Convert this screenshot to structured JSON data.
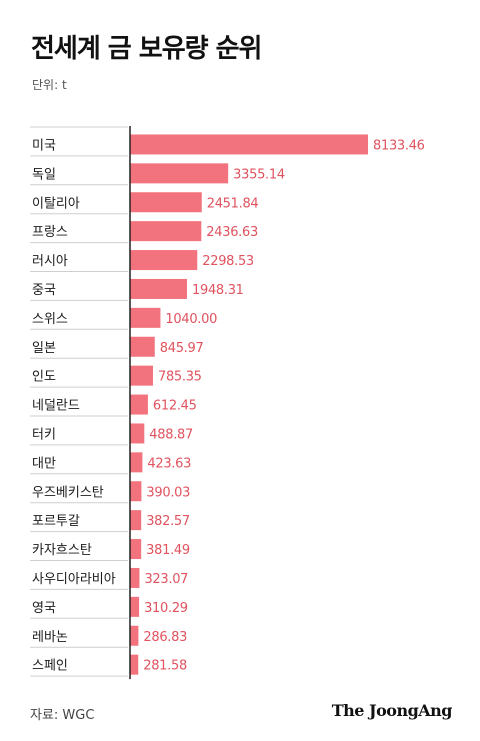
{
  "header": {
    "title": "전세계 금 보유량 순위",
    "unit": "단위: t"
  },
  "footer": {
    "source": "자료: WGC",
    "brand": "The JoongAng"
  },
  "colors": {
    "bar": "#f2737d",
    "value_label": "#e0535f",
    "category_label": "#1a1a1a",
    "axis": "#222222",
    "separator": "#cfcfcf"
  },
  "chart_data": {
    "type": "bar",
    "orientation": "horizontal",
    "title": "전세계 금 보유량 순위",
    "unit": "t",
    "xlim": [
      0,
      8133.46
    ],
    "grid": false,
    "legend": "none",
    "categories": [
      "미국",
      "독일",
      "이탈리아",
      "프랑스",
      "러시아",
      "중국",
      "스위스",
      "일본",
      "인도",
      "네덜란드",
      "터키",
      "대만",
      "우즈베키스탄",
      "포르투갈",
      "카자흐스탄",
      "사우디아라비아",
      "영국",
      "레바논",
      "스페인"
    ],
    "values": [
      8133.46,
      3355.14,
      2451.84,
      2436.63,
      2298.53,
      1948.31,
      1040.0,
      845.97,
      785.35,
      612.45,
      488.87,
      423.63,
      390.03,
      382.57,
      381.49,
      323.07,
      310.29,
      286.83,
      281.58
    ],
    "value_labels": [
      "8133.46",
      "3355.14",
      "2451.84",
      "2436.63",
      "2298.53",
      "1948.31",
      "1040.00",
      "845.97",
      "785.35",
      "612.45",
      "488.87",
      "423.63",
      "390.03",
      "382.57",
      "381.49",
      "323.07",
      "310.29",
      "286.83",
      "281.58"
    ]
  }
}
